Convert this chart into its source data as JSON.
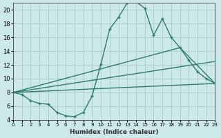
{
  "xlabel": "Humidex (Indice chaleur)",
  "ylabel": "",
  "bg_color": "#cce8e8",
  "grid_color": "#aacfcf",
  "line_color": "#2d7a6e",
  "xlim": [
    0,
    23
  ],
  "ylim": [
    4,
    21
  ],
  "yticks": [
    4,
    6,
    8,
    10,
    12,
    14,
    16,
    18,
    20
  ],
  "xticks": [
    0,
    1,
    2,
    3,
    4,
    5,
    6,
    7,
    8,
    9,
    10,
    11,
    12,
    13,
    14,
    15,
    16,
    17,
    18,
    19,
    20,
    21,
    22,
    23
  ],
  "curve1_x": [
    0,
    1,
    2,
    3,
    4,
    5,
    6,
    7,
    8,
    9,
    10,
    11,
    12,
    13,
    14,
    15,
    16,
    17,
    18,
    19,
    20,
    21,
    22,
    23
  ],
  "curve1_y": [
    8.0,
    7.7,
    6.8,
    6.4,
    6.3,
    5.1,
    4.6,
    4.5,
    5.1,
    7.5,
    12.1,
    17.2,
    18.9,
    21.0,
    21.2,
    20.2,
    16.3,
    18.7,
    16.0,
    14.5,
    12.7,
    11.0,
    10.0,
    9.3
  ],
  "curve2_x": [
    0,
    23
  ],
  "curve2_y": [
    8.0,
    9.3
  ],
  "curve3_x": [
    0,
    19,
    23
  ],
  "curve3_y": [
    8.0,
    14.5,
    9.3
  ],
  "curve4_x": [
    0,
    23
  ],
  "curve4_y": [
    8.0,
    12.5
  ]
}
